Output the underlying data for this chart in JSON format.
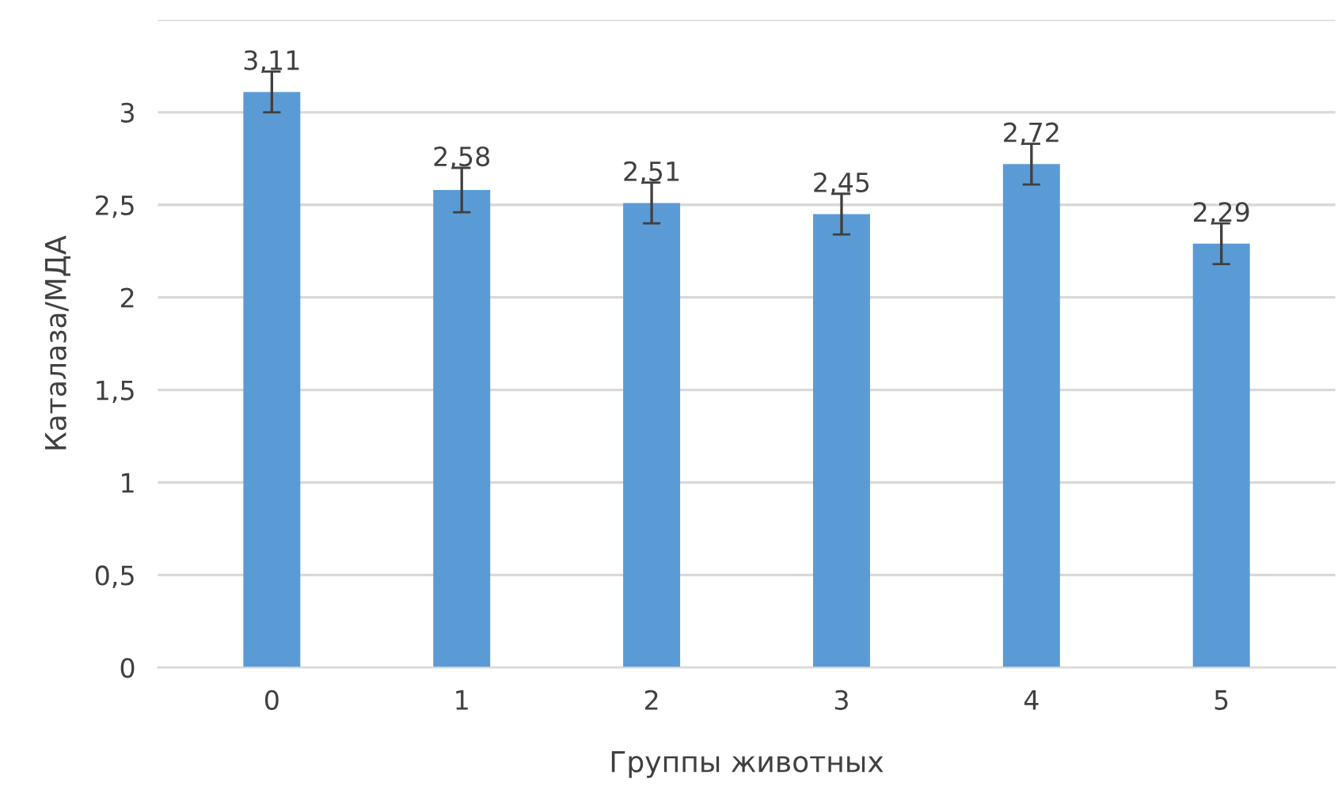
{
  "chart_data": {
    "type": "bar",
    "ylabel": "Каталаза/МДА",
    "xlabel": "Группы животных",
    "categories": [
      "0",
      "1",
      "2",
      "3",
      "4",
      "5"
    ],
    "values": [
      3.11,
      2.58,
      2.51,
      2.45,
      2.72,
      2.29
    ],
    "errors": [
      0.11,
      0.12,
      0.11,
      0.11,
      0.11,
      0.11
    ],
    "value_labels": [
      "3,11",
      "2,58",
      "2,51",
      "2,45",
      "2,72",
      "2,29"
    ],
    "color": "#5b9bd5",
    "ylim": [
      0,
      3.5
    ],
    "yticks": [
      0,
      {
        "value": 0.5,
        "label": "0,5"
      },
      1,
      {
        "value": 1.5,
        "label": "1,5"
      },
      2,
      {
        "value": 2.5,
        "label": "2,5"
      },
      3,
      {
        "value": 3.5,
        "label": null
      }
    ],
    "grid": "y"
  }
}
